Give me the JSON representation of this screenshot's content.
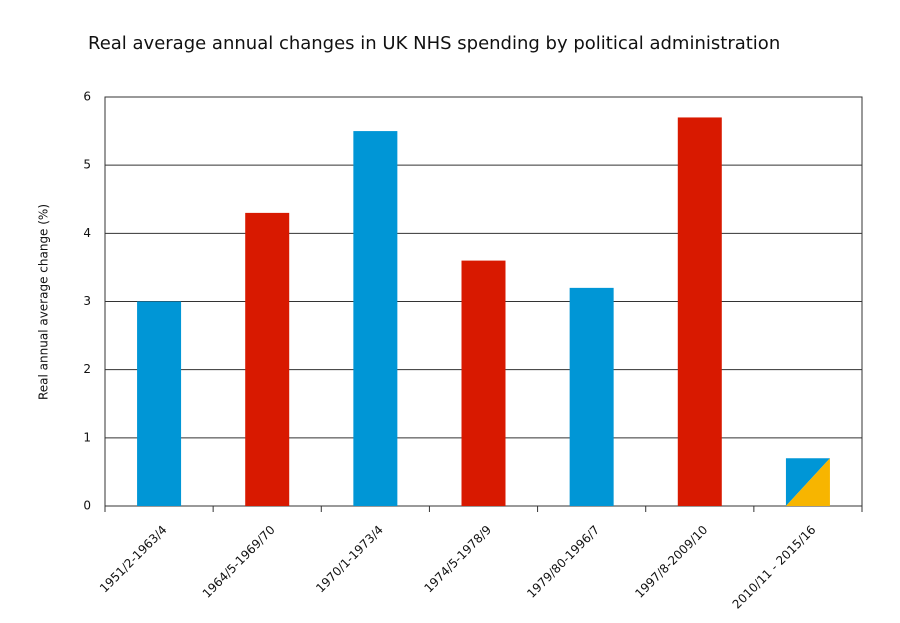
{
  "chart_data": {
    "type": "bar",
    "title": "Real average annual changes in UK NHS spending by political administration",
    "y_label": "Real annual average change (%)",
    "categories": [
      "1951/2-1963/4",
      "1964/5-1969/70",
      "1970/1-1973/4",
      "1974/5-1978/9",
      "1979/80-1996/7",
      "1997/8-2009/10",
      "2010/11 - 2015/16"
    ],
    "values": [
      3,
      4.3,
      5.5,
      3.6,
      3.2,
      5.7,
      0.7
    ],
    "colors": [
      "#0096d6",
      "#d81900",
      "#0096d6",
      "#d81900",
      "#0096d6",
      "#d81900",
      [
        "#0096d6",
        "#f7b500"
      ]
    ],
    "ylim": [
      0,
      6
    ],
    "yticks": [
      0,
      1,
      2,
      3,
      4,
      5,
      6
    ],
    "grid": true
  }
}
